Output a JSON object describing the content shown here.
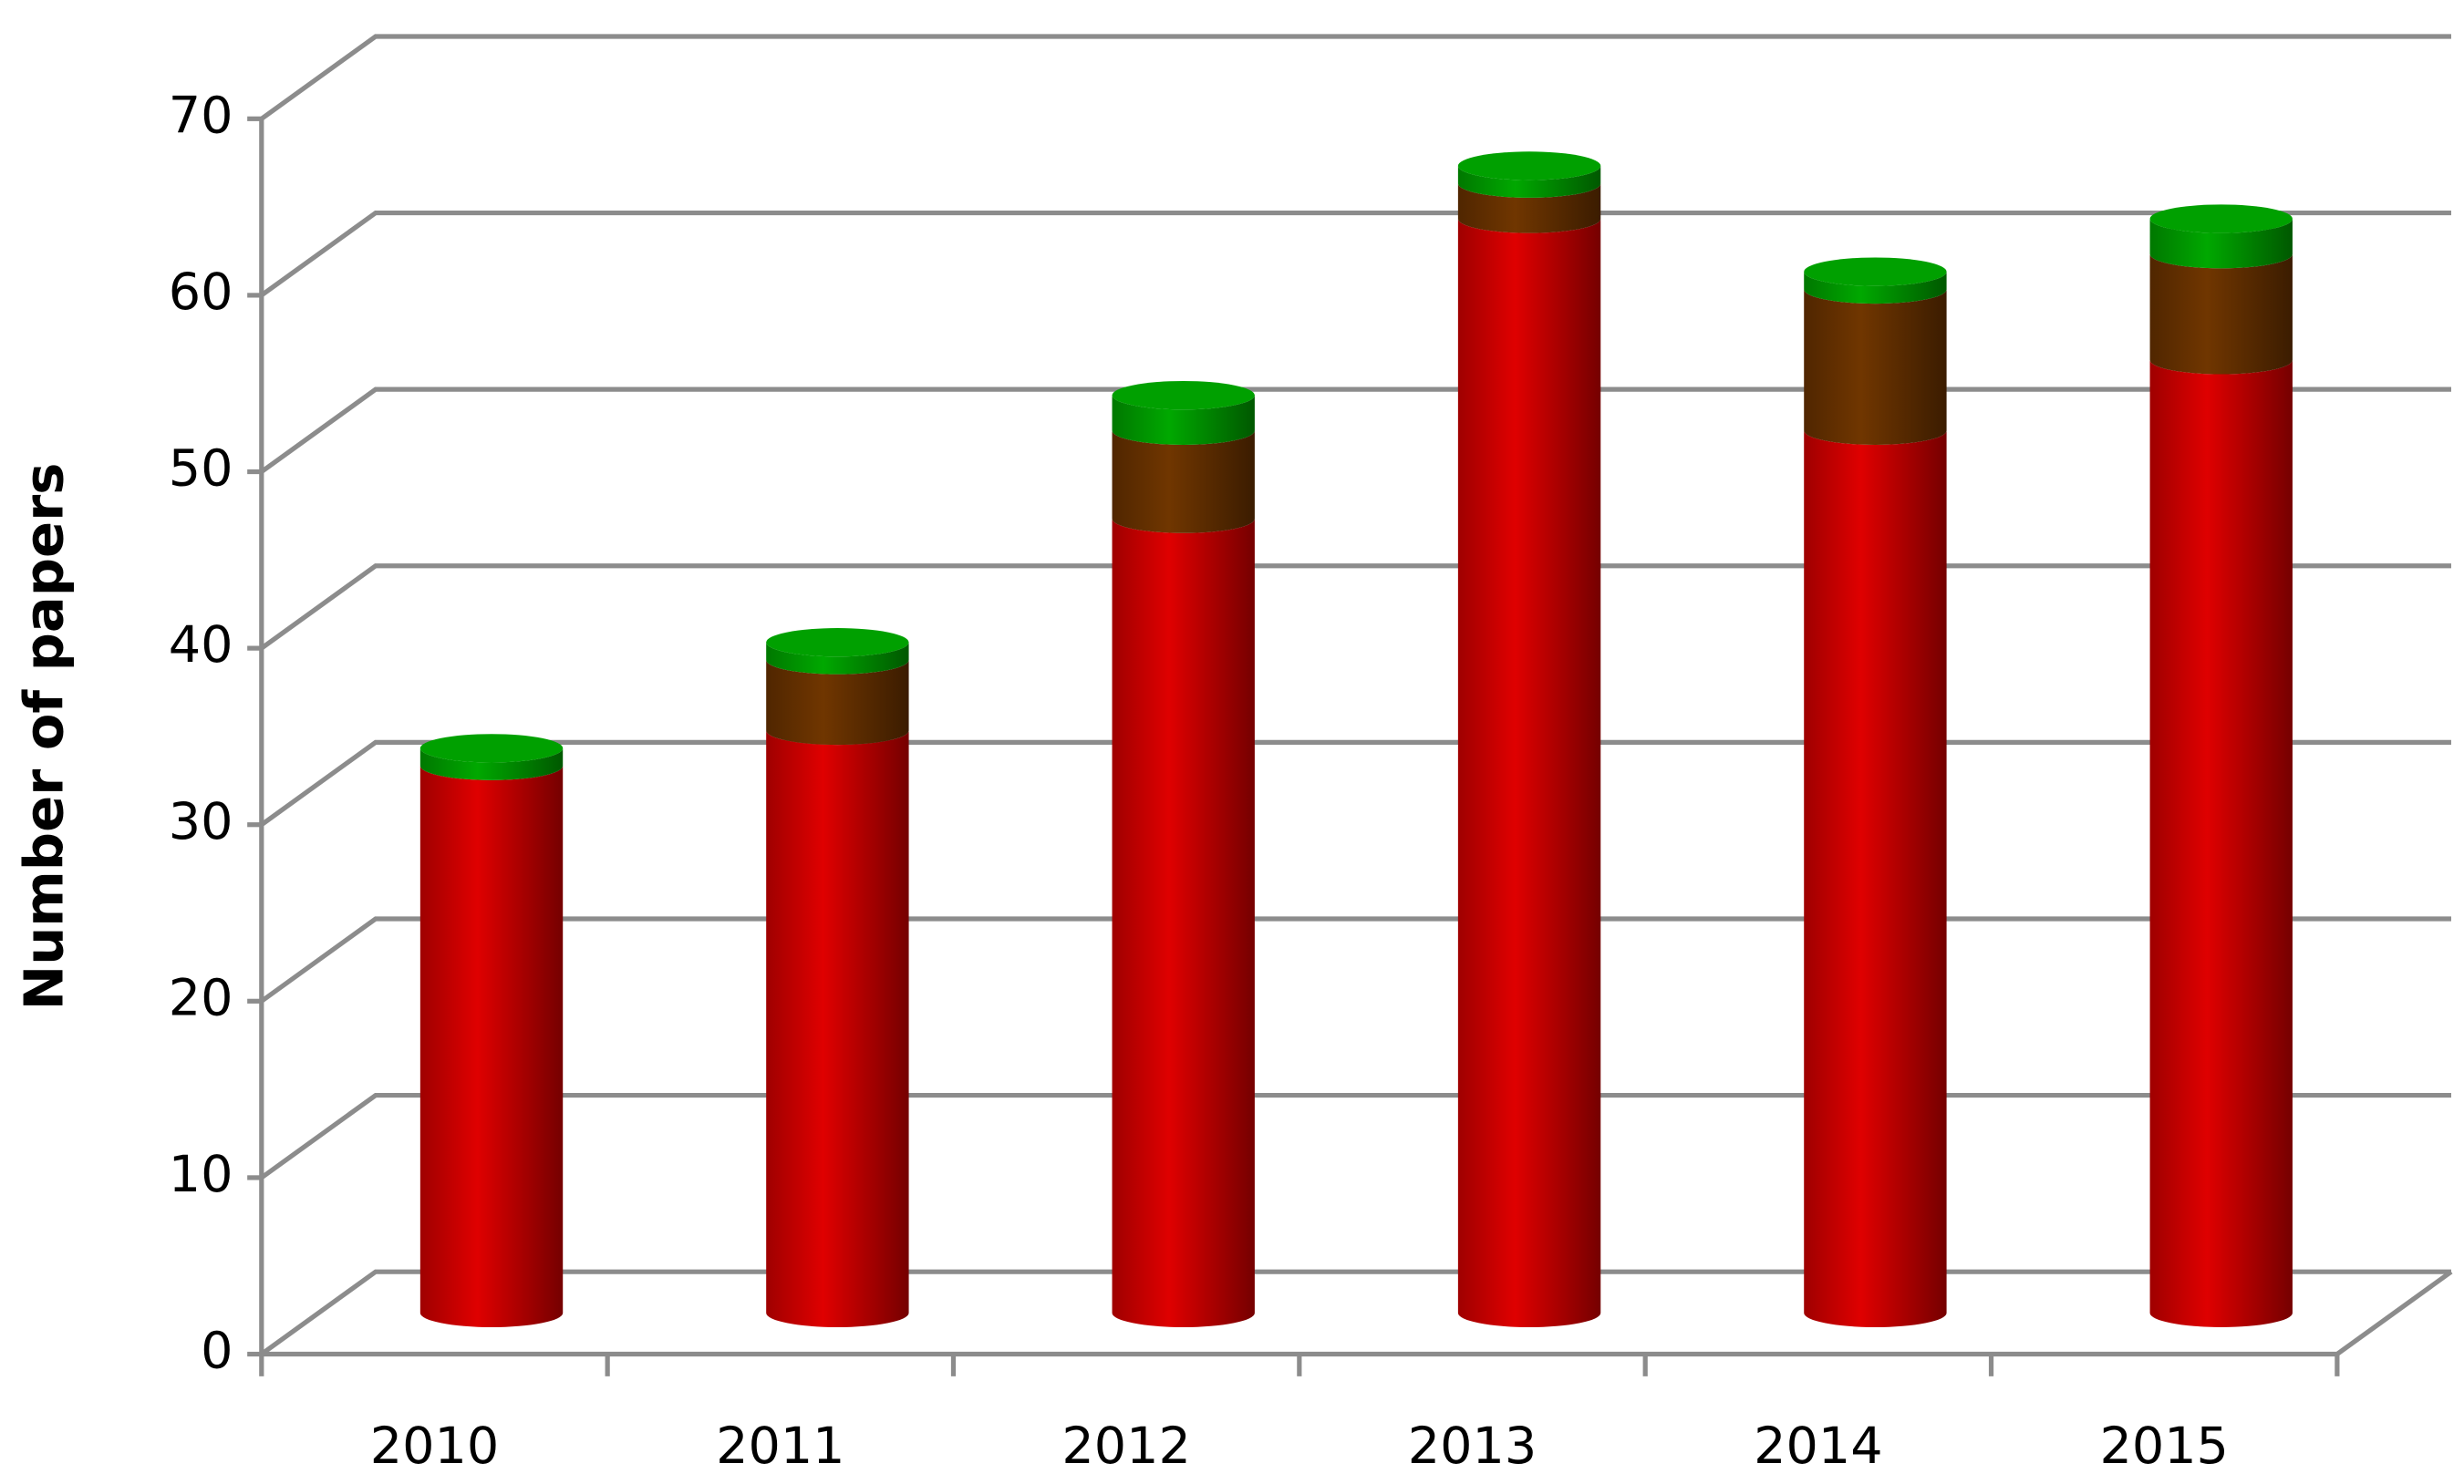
{
  "chart_data": {
    "type": "bar",
    "stacked": true,
    "three_d": true,
    "y_label": "Number of papers",
    "categories": [
      "2010",
      "2011",
      "2012",
      "2013",
      "2014",
      "2015"
    ],
    "series": [
      {
        "color": "#d40000",
        "values": [
          31,
          33,
          45,
          62,
          50,
          54
        ]
      },
      {
        "color": "#6b3300",
        "values": [
          0,
          4,
          5,
          2,
          8,
          6
        ]
      },
      {
        "color": "#00a000",
        "values": [
          1,
          1,
          2,
          1,
          1,
          2
        ]
      }
    ],
    "ylim": [
      0,
      70
    ],
    "yticks": [
      0,
      10,
      20,
      30,
      40,
      50,
      60,
      70
    ],
    "grid": true
  }
}
